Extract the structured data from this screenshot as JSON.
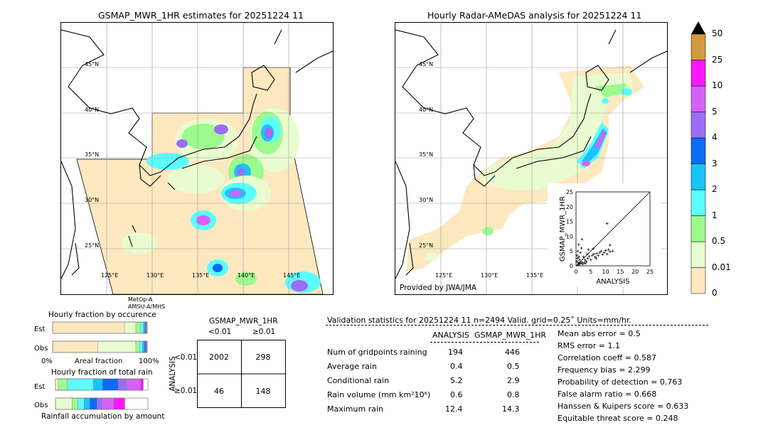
{
  "left_map": {
    "title": "GSMAP_MWR_1HR estimates for 20251224 11",
    "satellite_note_1": "MetOp-A",
    "satellite_note_2": "AMSU-A/MHS",
    "lat_labels": [
      "45°N",
      "40°N",
      "35°N",
      "30°N",
      "25°N"
    ],
    "lon_labels": [
      "125°E",
      "130°E",
      "135°E",
      "140°E",
      "145°E"
    ]
  },
  "right_map": {
    "title": "Hourly Radar-AMeDAS analysis for 20251224 11",
    "credit": "Provided by JWA/JMA",
    "lat_labels": [
      "45°N",
      "40°N",
      "35°N",
      "30°N",
      "25°N"
    ],
    "lon_labels": [
      "125°E",
      "130°E",
      "135°E"
    ]
  },
  "colorbar": {
    "levels": [
      "0",
      "0.01",
      "0.5",
      "1",
      "2",
      "3",
      "4",
      "5",
      "10",
      "25",
      "50"
    ],
    "colors": [
      "#fde8c0",
      "#e9fcd0",
      "#9dfa8f",
      "#5cfcfc",
      "#18c4fa",
      "#0b6bf4",
      "#9b6cf5",
      "#d562f7",
      "#fa18f8",
      "#d19a3f"
    ],
    "extend_color": "#000000"
  },
  "chart_data": [
    {
      "type": "scatter",
      "title": "",
      "xlabel": "ANALYSIS",
      "ylabel": "GSMAP_MWR_1HR",
      "xlim": [
        0,
        25
      ],
      "ylim": [
        0,
        25
      ],
      "xticks": [
        "0",
        "5",
        "10",
        "15",
        "20",
        "25"
      ],
      "yticks": [
        "0",
        "5",
        "10",
        "15",
        "20",
        "25"
      ],
      "diagonal": true,
      "points": [
        [
          0.3,
          1.5
        ],
        [
          0.5,
          2.5
        ],
        [
          0.8,
          1.0
        ],
        [
          1.0,
          3.0
        ],
        [
          1.2,
          2.0
        ],
        [
          1.5,
          4.5
        ],
        [
          0.6,
          5.0
        ],
        [
          0.4,
          3.5
        ],
        [
          2.0,
          1.2
        ],
        [
          2.5,
          3.0
        ],
        [
          3.0,
          2.0
        ],
        [
          3.5,
          1.5
        ],
        [
          4.0,
          2.5
        ],
        [
          4.5,
          3.2
        ],
        [
          5.0,
          2.0
        ],
        [
          5.5,
          3.5
        ],
        [
          6.0,
          4.0
        ],
        [
          6.5,
          3.0
        ],
        [
          7.0,
          4.2
        ],
        [
          7.5,
          3.5
        ],
        [
          8.0,
          4.5
        ],
        [
          8.5,
          5.0
        ],
        [
          9.0,
          3.8
        ],
        [
          9.5,
          4.5
        ],
        [
          10.0,
          5.2
        ],
        [
          10.5,
          4.0
        ],
        [
          11.0,
          5.5
        ],
        [
          11.5,
          4.8
        ],
        [
          12.4,
          5.0
        ],
        [
          2.0,
          9.0
        ],
        [
          10.5,
          14.3
        ],
        [
          11.5,
          7.0
        ],
        [
          1.0,
          0.5
        ],
        [
          1.5,
          0.8
        ],
        [
          2.2,
          0.6
        ],
        [
          0.7,
          0.3
        ],
        [
          3.2,
          0.9
        ],
        [
          1.8,
          6.0
        ],
        [
          0.9,
          7.2
        ],
        [
          4.2,
          5.5
        ],
        [
          5.8,
          5.8
        ],
        [
          3.8,
          4.0
        ],
        [
          6.8,
          2.5
        ],
        [
          2.8,
          1.0
        ],
        [
          1.3,
          1.1
        ]
      ]
    },
    {
      "type": "bar",
      "title": "Hourly fraction by occurence",
      "categories": [
        "Est",
        "Obs"
      ],
      "xlabel": "Areal fraction",
      "xticks": [
        "0%",
        "100%"
      ],
      "series": [
        {
          "color": "#fde8c0",
          "values": [
            0.76,
            0.48
          ]
        },
        {
          "color": "#e9fcd0",
          "values": [
            0.12,
            0.4
          ]
        },
        {
          "color": "#9dfa8f",
          "values": [
            0.05,
            0.04
          ]
        },
        {
          "color": "#5cfcfc",
          "values": [
            0.03,
            0.03
          ]
        },
        {
          "color": "#18c4fa",
          "values": [
            0.015,
            0.02
          ]
        },
        {
          "color": "#0b6bf4",
          "values": [
            0.01,
            0.015
          ]
        },
        {
          "color": "#9b6cf5",
          "values": [
            0.01,
            0.01
          ]
        },
        {
          "color": "#d562f7",
          "values": [
            0.005,
            0.005
          ]
        }
      ]
    },
    {
      "type": "bar",
      "title": "Hourly fraction of total rain",
      "categories": [
        "Est",
        "Obs"
      ],
      "xlabel": "Rainfall accumulation by amount",
      "series": [
        {
          "color": "#e9fcd0",
          "values": [
            0.03,
            0.18
          ]
        },
        {
          "color": "#9dfa8f",
          "values": [
            0.1,
            0.06
          ]
        },
        {
          "color": "#5cfcfc",
          "values": [
            0.28,
            0.07
          ]
        },
        {
          "color": "#18c4fa",
          "values": [
            0.1,
            0.06
          ]
        },
        {
          "color": "#0b6bf4",
          "values": [
            0.17,
            0.08
          ]
        },
        {
          "color": "#9b6cf5",
          "values": [
            0.09,
            0.05
          ]
        },
        {
          "color": "#d562f7",
          "values": [
            0.15,
            0.13
          ]
        },
        {
          "color": "#fa18f8",
          "values": [
            0.03,
            0.12
          ]
        }
      ]
    },
    {
      "type": "table",
      "title": "GSMAP_MWR_1HR",
      "col_headers": [
        "<0.01",
        "≥0.01"
      ],
      "row_headers": [
        "<0.01",
        "≥0.01"
      ],
      "row_axis_label": "ANALYSIS",
      "cells": [
        [
          "2002",
          "298"
        ],
        [
          "46",
          "148"
        ]
      ]
    }
  ],
  "validation": {
    "header": "Validation statistics for 20251224 11  n=2494 Valid. grid=0.25˚ Units=mm/hr.",
    "col_analysis": "ANALYSIS",
    "col_gsmap": "GSMAP_MWR_1HR",
    "rows": [
      {
        "label": "Num of gridpoints raining",
        "analysis": "194",
        "gsmap": "446"
      },
      {
        "label": "Average rain",
        "analysis": "0.4",
        "gsmap": "0.5"
      },
      {
        "label": "Conditional rain",
        "analysis": "5.2",
        "gsmap": "2.9"
      },
      {
        "label": "Rain volume (mm km²10⁶)",
        "analysis": "0.6",
        "gsmap": "0.8"
      },
      {
        "label": "Maximum rain",
        "analysis": "12.4",
        "gsmap": "14.3"
      }
    ],
    "scores": [
      "Mean abs error =    0.5",
      "RMS error =    1.1",
      "Correlation coeff =  0.587",
      "Frequency bias =  2.299",
      "Probability of detection =  0.763",
      "False alarm ratio =  0.668",
      "Hanssen & Kuipers score =  0.633",
      "Equitable threat score =  0.248"
    ]
  }
}
